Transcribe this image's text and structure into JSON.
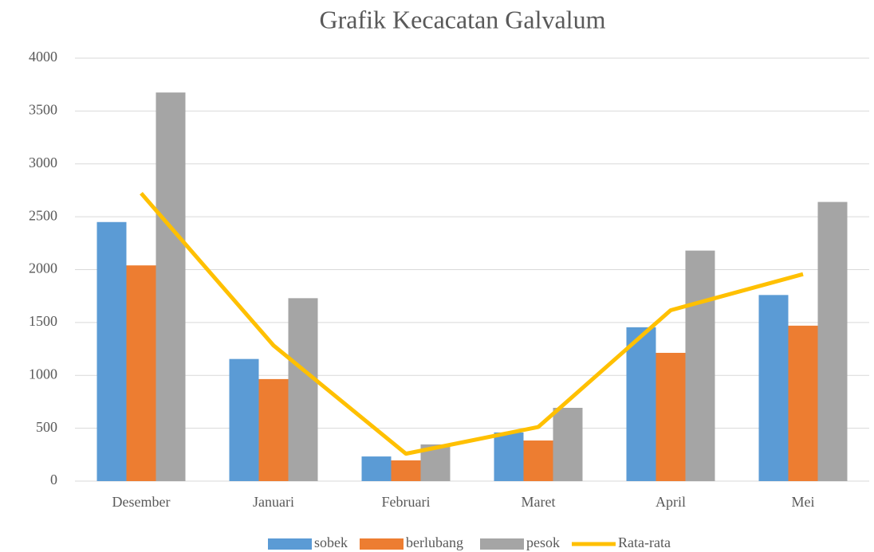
{
  "chart_data": {
    "type": "bar",
    "title": "Grafik Kecacatan Galvalum",
    "categories": [
      "Desember",
      "Januari",
      "Februari",
      "Maret",
      "April",
      "Mei"
    ],
    "series": [
      {
        "name": "sobek",
        "color": "#5b9bd5",
        "values": [
          2450,
          1155,
          233,
          460,
          1455,
          1760
        ]
      },
      {
        "name": "berlubang",
        "color": "#ed7d31",
        "values": [
          2040,
          965,
          196,
          384,
          1213,
          1470
        ]
      },
      {
        "name": "pesok",
        "color": "#a5a5a5",
        "values": [
          3675,
          1730,
          347,
          693,
          2180,
          2640
        ]
      },
      {
        "name": "Rata-rata",
        "color": "#ffc000",
        "type": "line",
        "values": [
          2722,
          1283,
          259,
          512,
          1616,
          1957
        ]
      }
    ],
    "ylim": [
      0,
      4000
    ],
    "yticks": [
      0,
      500,
      1000,
      1500,
      2000,
      2500,
      3000,
      3500,
      4000
    ],
    "grid": true,
    "legend": "bottom"
  }
}
